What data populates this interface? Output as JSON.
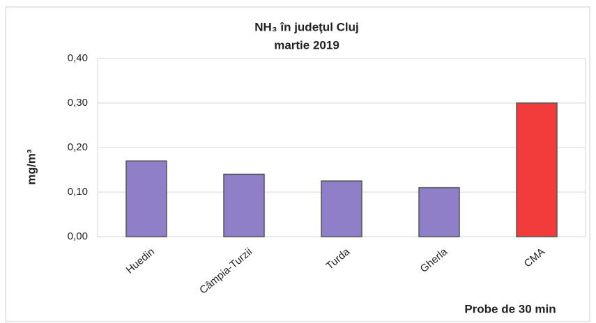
{
  "chart_data": {
    "type": "bar",
    "title": "NH₃ în judeţul Cluj",
    "subtitle": "martie 2019",
    "y_label": "mg/m³",
    "x_label": "Probe de 30 min",
    "categories": [
      "Huedin",
      "Câmpia-Turzii",
      "Turda",
      "Gherla",
      "CMA"
    ],
    "values": [
      0.17,
      0.14,
      0.125,
      0.11,
      0.3
    ],
    "colors": [
      "#8f7fc8",
      "#8f7fc8",
      "#8f7fc8",
      "#8f7fc8",
      "#f23c3c"
    ],
    "ylim": [
      0,
      0.4
    ],
    "yticks": [
      {
        "value": 0,
        "label": "0,00"
      },
      {
        "value": 0.1,
        "label": "0,10"
      },
      {
        "value": 0.2,
        "label": "0,20"
      },
      {
        "value": 0.3,
        "label": "0,30"
      },
      {
        "value": 0.4,
        "label": "0,40"
      }
    ],
    "grid": true
  }
}
